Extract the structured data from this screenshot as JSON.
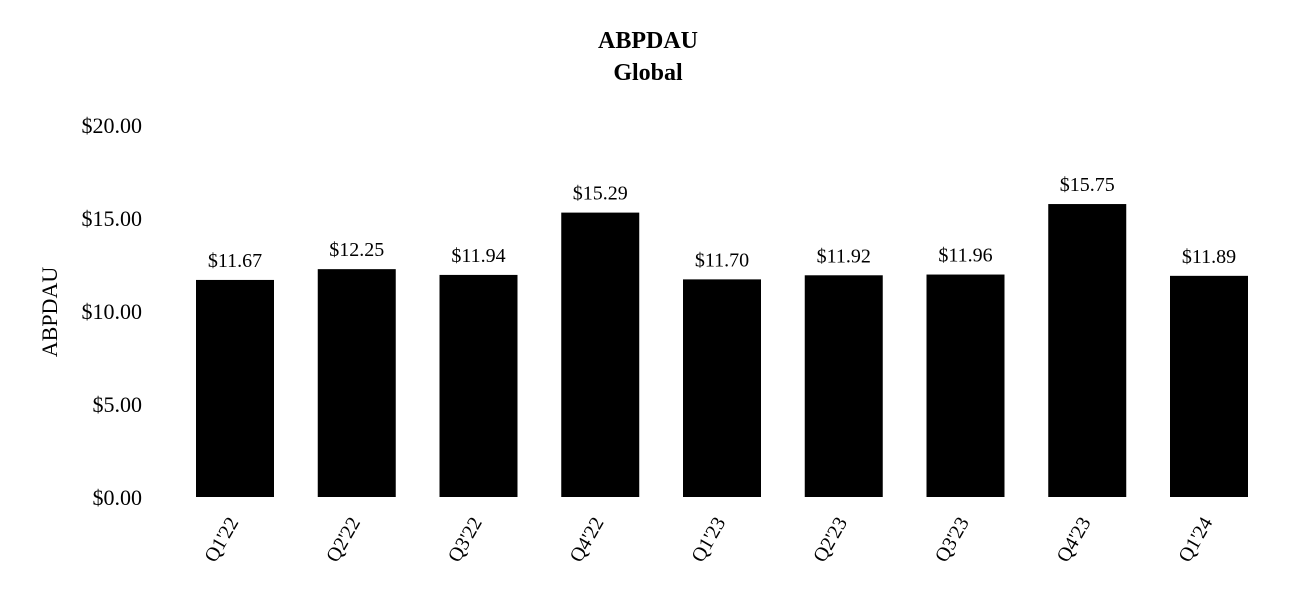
{
  "chart_data": {
    "type": "bar",
    "title": "ABPDAU",
    "subtitle": "Global",
    "ylabel": "ABPDAU",
    "xlabel": "",
    "categories": [
      "Q1'22",
      "Q2'22",
      "Q3'22",
      "Q4'22",
      "Q1'23",
      "Q2'23",
      "Q3'23",
      "Q4'23",
      "Q1'24"
    ],
    "values": [
      11.67,
      12.25,
      11.94,
      15.29,
      11.7,
      11.92,
      11.96,
      15.75,
      11.89
    ],
    "data_labels": [
      "$11.67",
      "$12.25",
      "$11.94",
      "$15.29",
      "$11.70",
      "$11.92",
      "$11.96",
      "$15.75",
      "$11.89"
    ],
    "ylim": [
      0,
      20
    ],
    "yticks": [
      0,
      5,
      10,
      15,
      20
    ],
    "ytick_labels": [
      "$0.00",
      "$5.00",
      "$10.00",
      "$15.00",
      "$20.00"
    ],
    "grid": false,
    "legend": "none",
    "bar_color": "#000000"
  }
}
